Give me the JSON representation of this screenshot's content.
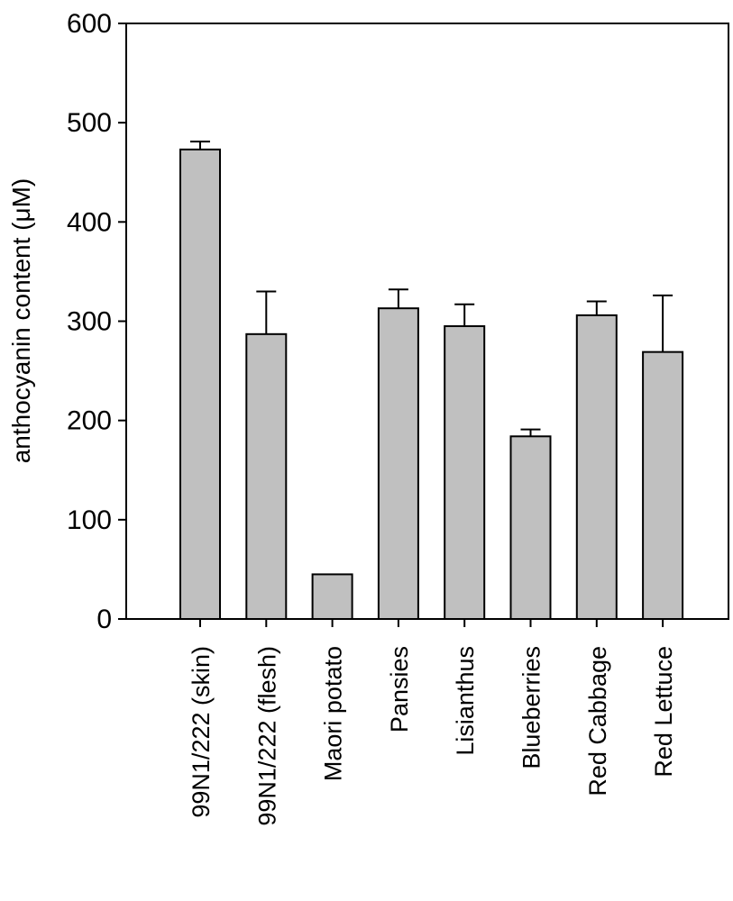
{
  "chart_data": {
    "type": "bar",
    "title": "",
    "xlabel": "",
    "ylabel": "anthocyanin content (μM)",
    "ylim": [
      0,
      600
    ],
    "yticks": [
      0,
      100,
      200,
      300,
      400,
      500,
      600
    ],
    "grid": false,
    "categories": [
      "99N1/222 (skin)",
      "99N1/222 (flesh)",
      "Maori potato",
      "Pansies",
      "Lisianthus",
      "Blueberries",
      "Red Cabbage",
      "Red Lettuce"
    ],
    "values": [
      473,
      287,
      45,
      313,
      295,
      184,
      306,
      269
    ],
    "errors": [
      8,
      43,
      0,
      19,
      22,
      7,
      14,
      57
    ],
    "colors": {
      "bar_fill": "#c0c0c0",
      "bar_stroke": "#000000",
      "axis": "#000000"
    }
  }
}
